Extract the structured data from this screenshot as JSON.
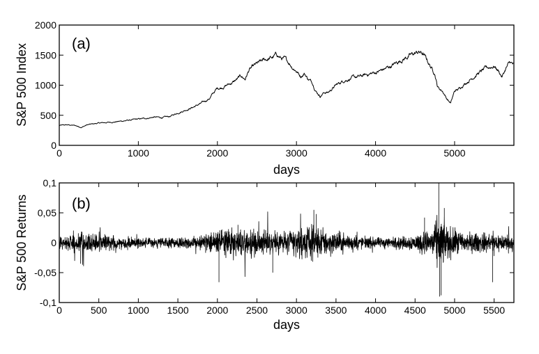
{
  "chart_data": [
    {
      "type": "line",
      "panel_label": "(a)",
      "xlabel": "days",
      "ylabel": "S&P 500 Index",
      "xlim": [
        0,
        5750
      ],
      "ylim": [
        0,
        2000
      ],
      "grid": false,
      "xticks": [
        0,
        1000,
        2000,
        3000,
        4000,
        5000
      ],
      "xtick_labels": [
        "0",
        "1000",
        "2000",
        "3000",
        "4000",
        "5000"
      ],
      "yticks": [
        0,
        500,
        1000,
        1500,
        2000
      ],
      "ytick_labels": [
        "0",
        "500",
        "1000",
        "1500",
        "2000"
      ],
      "series": [
        {
          "x": [
            0,
            100,
            200,
            280,
            350,
            500,
            700,
            900,
            1100,
            1200,
            1300,
            1400,
            1500,
            1600,
            1700,
            1800,
            1900,
            1950,
            2000,
            2050,
            2100,
            2200,
            2300,
            2350,
            2400,
            2450,
            2500,
            2600,
            2700,
            2750,
            2800,
            2850,
            2900,
            2950,
            3000,
            3050,
            3100,
            3150,
            3200,
            3250,
            3300,
            3350,
            3400,
            3500,
            3600,
            3700,
            3800,
            3900,
            4000,
            4100,
            4200,
            4300,
            4400,
            4450,
            4500,
            4550,
            4600,
            4650,
            4700,
            4750,
            4780,
            4800,
            4850,
            4900,
            4950,
            5000,
            5050,
            5100,
            5200,
            5300,
            5400,
            5500,
            5550,
            5600,
            5650,
            5700,
            5750
          ],
          "values": [
            330,
            340,
            330,
            300,
            340,
            370,
            390,
            420,
            450,
            470,
            460,
            480,
            540,
            590,
            640,
            700,
            780,
            870,
            950,
            960,
            990,
            1050,
            1150,
            1100,
            1250,
            1300,
            1350,
            1420,
            1460,
            1510,
            1450,
            1430,
            1380,
            1300,
            1240,
            1150,
            1200,
            1100,
            1050,
            900,
            820,
            880,
            880,
            1000,
            1080,
            1120,
            1140,
            1180,
            1210,
            1260,
            1320,
            1400,
            1470,
            1500,
            1530,
            1550,
            1520,
            1420,
            1300,
            1200,
            1000,
            950,
            900,
            780,
            700,
            900,
            930,
            1000,
            1100,
            1200,
            1280,
            1320,
            1250,
            1140,
            1280,
            1380,
            1330
          ]
        }
      ]
    },
    {
      "type": "line",
      "panel_label": "(b)",
      "xlabel": "days",
      "ylabel": "S&P 500 Returns",
      "xlim": [
        0,
        5750
      ],
      "ylim": [
        -0.1,
        0.1
      ],
      "grid": false,
      "xticks": [
        0,
        500,
        1000,
        1500,
        2000,
        2500,
        3000,
        3500,
        4000,
        4500,
        5000,
        5500
      ],
      "xtick_labels": [
        "0",
        "500",
        "1000",
        "1500",
        "2000",
        "2500",
        "3000",
        "3500",
        "4000",
        "4500",
        "5000",
        "5500"
      ],
      "yticks": [
        -0.1,
        -0.05,
        0,
        0.05,
        0.1
      ],
      "ytick_labels": [
        "-0,1",
        "-0,05",
        "0",
        "0,05",
        "0,1"
      ],
      "volatility_profile": {
        "x": [
          0,
          300,
          600,
          1000,
          1500,
          1900,
          2050,
          2300,
          2700,
          3000,
          3250,
          3400,
          3700,
          4000,
          4300,
          4500,
          4700,
          4780,
          4820,
          4900,
          5000,
          5200,
          5400,
          5600,
          5750
        ],
        "amplitude": [
          0.009,
          0.012,
          0.009,
          0.006,
          0.006,
          0.011,
          0.016,
          0.018,
          0.015,
          0.018,
          0.02,
          0.016,
          0.009,
          0.006,
          0.007,
          0.01,
          0.016,
          0.03,
          0.032,
          0.022,
          0.016,
          0.012,
          0.012,
          0.011,
          0.01
        ]
      },
      "extremes": [
        {
          "x": 4800,
          "y": 0.1
        },
        {
          "x": 4810,
          "y": -0.09
        },
        {
          "x": 4830,
          "y": -0.088
        },
        {
          "x": 2020,
          "y": -0.066
        },
        {
          "x": 2260,
          "y": 0.03
        },
        {
          "x": 3220,
          "y": 0.055
        },
        {
          "x": 3250,
          "y": 0.048
        },
        {
          "x": 4620,
          "y": 0.042
        },
        {
          "x": 4870,
          "y": 0.058
        },
        {
          "x": 5480,
          "y": -0.066
        },
        {
          "x": 2700,
          "y": -0.05
        },
        {
          "x": 270,
          "y": -0.035
        }
      ]
    }
  ]
}
